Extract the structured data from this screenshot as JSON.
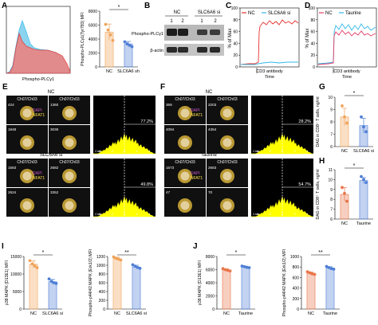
{
  "colors": {
    "red_series": "#e8302f",
    "blue_series": "#33b8ea",
    "pink_series": "#e23b64",
    "orange_bar": "#f0a35a",
    "blue_bar": "#4f7fd6",
    "red_bar": "#e8764a",
    "hist_yellow": "#ffff00",
    "dark_panel": "#101010"
  },
  "panels": {
    "A": {
      "letter": "A",
      "hist_xlabel": "Phospho-PLCγ1",
      "bar_ylabel": "Phospho-PLCγ1(Tyr783) MFI",
      "sig": "*",
      "categories": [
        "NC",
        "SLC6A6 sh"
      ],
      "bar_values": [
        5000,
        3300
      ],
      "dots": [
        [
          6100,
          5300,
          4600,
          3800
        ],
        [
          3600,
          3300,
          3100,
          2900
        ]
      ],
      "ylim": [
        0,
        8000
      ],
      "yticks": [
        "0",
        "2000",
        "4000",
        "6000",
        "8000"
      ]
    },
    "B": {
      "letter": "B",
      "group_nc": "NC",
      "group_si": "SLC6A6 si",
      "lanes": [
        "1",
        "2",
        "1",
        "2"
      ],
      "band_top": "Phospho-PLCγ1",
      "band_bottom": "β-actin"
    },
    "C": {
      "letter": "C",
      "legend": [
        "NC",
        "SLC6A6 si"
      ],
      "ylabel": "% of Max",
      "xlabel": "Time",
      "arrow_label": "CD3 antibody",
      "yticks": [
        "0",
        "20",
        "40",
        "60",
        "80",
        "100"
      ]
    },
    "D": {
      "letter": "D",
      "legend": [
        "NC",
        "Taurine"
      ],
      "ylabel": "% of Max",
      "xlabel": "Time",
      "arrow_label": "CD3 antibody",
      "yticks": [
        "0",
        "20",
        "40",
        "60",
        "80",
        "100"
      ]
    },
    "E": {
      "letter": "E",
      "title_top": "NC",
      "title_bottom": "SLC6A6 si",
      "tile_header": "Ch07/Ch03",
      "dapi": "DAPI",
      "nfat": "NFAT1",
      "ids_top": [
        "424",
        "1360",
        "1848",
        "3036"
      ],
      "ids_bottom": [
        "1583",
        "2682",
        "2624",
        "3352"
      ],
      "pct_top": "77.2%",
      "pct_bottom": "49.8%",
      "xaxis_ticks": [
        "-4",
        "-2",
        "0",
        "2",
        "4"
      ],
      "yaxis_label": "Cnts"
    },
    "F": {
      "letter": "F",
      "title_top": "NC",
      "title_bottom": "Taurine",
      "tile_header": "Ch07/Ch03",
      "dapi": "DAPI",
      "nfat": "NFAT1",
      "ids_top": [
        "369",
        "2203",
        "4094",
        "4354"
      ],
      "ids_bottom": [
        "1573",
        "2683",
        "47",
        "70"
      ],
      "pct_top": "28.2%",
      "pct_bottom": "54.7%",
      "xaxis_ticks": [
        "-4",
        "-2",
        "0",
        "2",
        "4"
      ],
      "yaxis_label": "Cnts"
    },
    "G": {
      "letter": "G",
      "ylabel": "DAG in CD8⁺ T cells, ng/ml",
      "sig": "*",
      "categories": [
        "NC",
        "SLC6A6 si"
      ],
      "bar_values": [
        8.4,
        7.7
      ],
      "dots": [
        [
          9.3,
          8.4,
          7.9
        ],
        [
          8.4,
          7.6,
          7.2
        ]
      ],
      "ylim": [
        6,
        10
      ],
      "yticks": [
        "6",
        "7",
        "8",
        "9",
        "10"
      ]
    },
    "H": {
      "letter": "H",
      "ylabel": "DAG in CD8⁺ T cells, ng/ml",
      "sig": "*",
      "categories": [
        "NC",
        "Taurine"
      ],
      "bar_values": [
        8.5,
        9.9
      ],
      "dots": [
        [
          9.2,
          8.6,
          7.8
        ],
        [
          10.3,
          10.0,
          9.7
        ]
      ],
      "ylim": [
        6,
        11
      ],
      "yticks": [
        "6",
        "7",
        "8",
        "9",
        "10",
        "11"
      ]
    },
    "I": {
      "letter": "I",
      "charts": [
        {
          "ylabel": "p38 MAPK (D13E1) MFI",
          "sig": "*",
          "categories": [
            "NC",
            "SLC6A6 si"
          ],
          "bar_values": [
            12800,
            7800
          ],
          "dots": [
            [
              13800,
              12900,
              12300,
              11800
            ],
            [
              8600,
              7900,
              7500,
              7300
            ]
          ],
          "ylim": [
            0,
            15000
          ],
          "yticks": [
            "0",
            "5000",
            "10000",
            "15000"
          ]
        },
        {
          "ylabel": "Phospho-p44/42 MAPK (Erk1/2) MFI",
          "sig": "**",
          "categories": [
            "NC",
            "SLC6A6 si"
          ],
          "bar_values": [
            1150,
            960
          ],
          "dots": [
            [
              1190,
              1160,
              1140,
              1120
            ],
            [
              1010,
              980,
              950,
              930
            ]
          ],
          "ylim": [
            0,
            1200
          ],
          "yticks": [
            "0",
            "200",
            "400",
            "600",
            "800",
            "1000",
            "1200"
          ]
        }
      ]
    },
    "J": {
      "letter": "J",
      "charts": [
        {
          "ylabel": "p38 MAPK (D13E1) MFI",
          "sig": "*",
          "categories": [
            "NC",
            "Taurine"
          ],
          "bar_values": [
            5950,
            6400
          ],
          "dots": [
            [
              6150,
              6000,
              5900,
              5800
            ],
            [
              6550,
              6450,
              6350,
              6300
            ]
          ],
          "ylim": [
            0,
            8000
          ],
          "yticks": [
            "0",
            "2000",
            "4000",
            "6000",
            "8000"
          ]
        },
        {
          "ylabel": "Phospho-p44/42 MAPK (Erk1/2) MFI",
          "sig": "**",
          "categories": [
            "NC",
            "Taurine"
          ],
          "bar_values": [
            680,
            780
          ],
          "dots": [
            [
              710,
              690,
              670,
              660
            ],
            [
              810,
              790,
              770,
              760
            ]
          ],
          "ylim": [
            0,
            1000
          ],
          "yticks": [
            "0",
            "200",
            "400",
            "600",
            "800",
            "1000"
          ]
        }
      ]
    }
  }
}
